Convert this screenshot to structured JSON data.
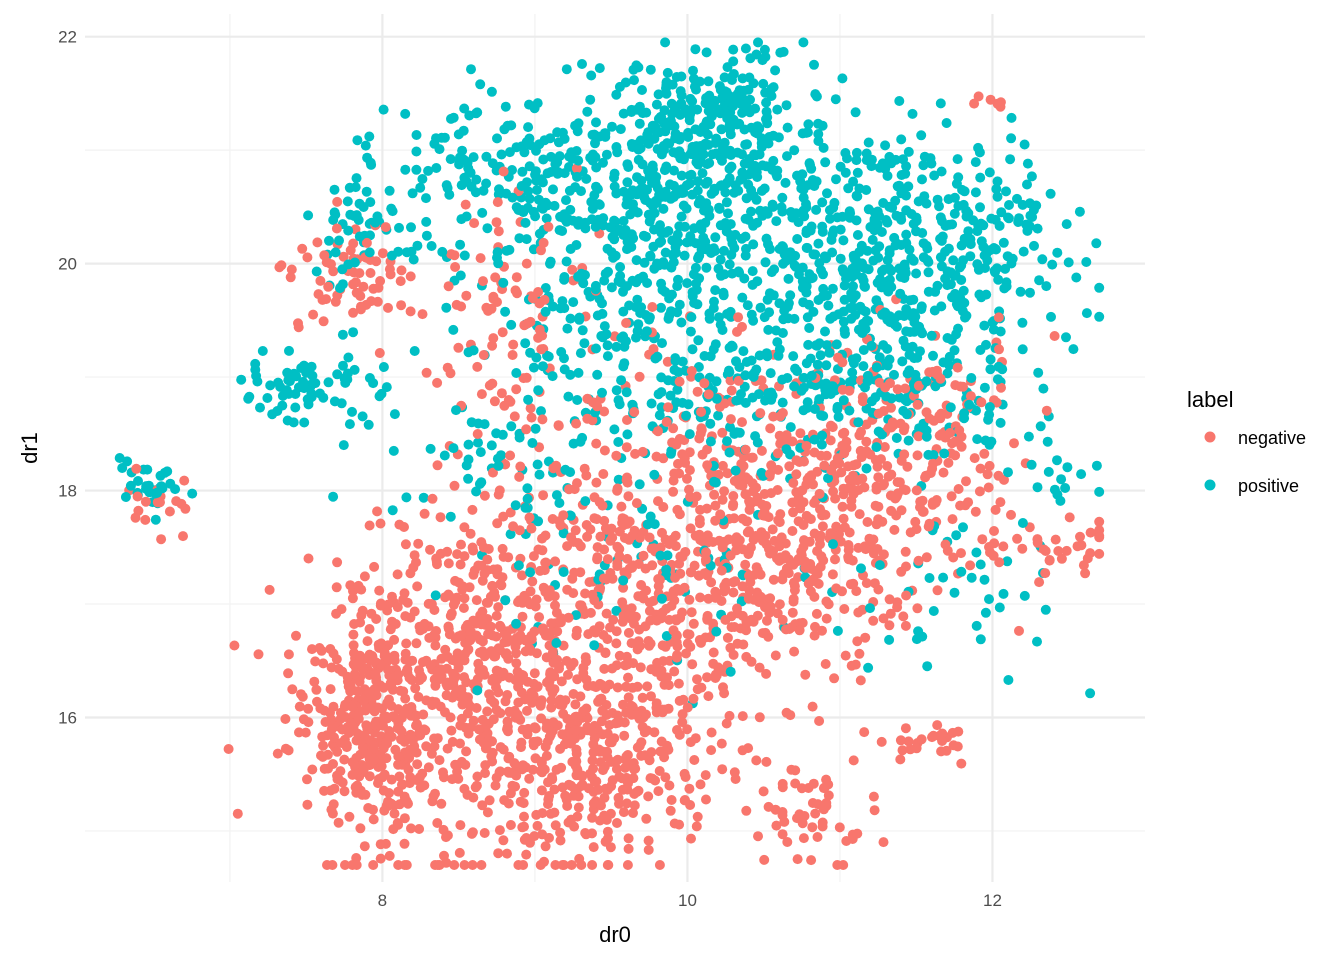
{
  "chart_data": {
    "type": "scatter",
    "title": "",
    "xlabel": "dr0",
    "ylabel": "dr1",
    "xlim": [
      6.05,
      13.0
    ],
    "ylim": [
      14.55,
      22.2
    ],
    "x_ticks": [
      8,
      10,
      12
    ],
    "y_ticks": [
      16,
      18,
      20,
      22
    ],
    "x_minor_ticks": [
      7,
      9,
      11
    ],
    "y_minor_ticks": [
      15,
      17,
      19,
      21
    ],
    "grid": true,
    "legend": {
      "title": "label",
      "position": "right"
    },
    "series": [
      {
        "name": "negative",
        "color": "#F8766D",
        "clusters": [
          {
            "cx": 7.9,
            "cy": 16.0,
            "sx": 0.25,
            "sy": 0.55,
            "n": 380
          },
          {
            "cx": 8.6,
            "cy": 16.4,
            "sx": 0.4,
            "sy": 0.8,
            "n": 420
          },
          {
            "cx": 9.4,
            "cy": 15.6,
            "sx": 0.4,
            "sy": 0.45,
            "n": 330
          },
          {
            "cx": 9.6,
            "cy": 17.0,
            "sx": 0.55,
            "sy": 0.65,
            "n": 380
          },
          {
            "cx": 10.4,
            "cy": 17.3,
            "sx": 0.45,
            "sy": 0.6,
            "n": 280
          },
          {
            "cx": 11.1,
            "cy": 17.8,
            "sx": 0.45,
            "sy": 0.5,
            "n": 200
          },
          {
            "cx": 10.8,
            "cy": 15.2,
            "sx": 0.2,
            "sy": 0.25,
            "n": 55
          },
          {
            "cx": 11.6,
            "cy": 15.8,
            "sx": 0.15,
            "sy": 0.08,
            "n": 25
          },
          {
            "cx": 12.3,
            "cy": 17.5,
            "sx": 0.3,
            "sy": 0.15,
            "n": 40
          },
          {
            "cx": 7.8,
            "cy": 19.9,
            "sx": 0.2,
            "sy": 0.25,
            "n": 70
          },
          {
            "cx": 8.9,
            "cy": 19.5,
            "sx": 0.3,
            "sy": 0.5,
            "n": 90
          },
          {
            "cx": 11.5,
            "cy": 18.6,
            "sx": 0.4,
            "sy": 0.4,
            "n": 110
          },
          {
            "cx": 6.6,
            "cy": 17.9,
            "sx": 0.15,
            "sy": 0.12,
            "n": 18
          },
          {
            "cx": 10.2,
            "cy": 18.5,
            "sx": 0.6,
            "sy": 0.4,
            "n": 140
          },
          {
            "cx": 12.0,
            "cy": 21.4,
            "sx": 0.05,
            "sy": 0.05,
            "n": 6
          }
        ]
      },
      {
        "name": "positive",
        "color": "#00BFC4",
        "clusters": [
          {
            "cx": 10.1,
            "cy": 21.2,
            "sx": 0.35,
            "sy": 0.35,
            "n": 260
          },
          {
            "cx": 10.6,
            "cy": 20.3,
            "sx": 0.6,
            "sy": 0.6,
            "n": 420
          },
          {
            "cx": 9.4,
            "cy": 20.2,
            "sx": 0.5,
            "sy": 0.55,
            "n": 300
          },
          {
            "cx": 11.5,
            "cy": 19.9,
            "sx": 0.45,
            "sy": 0.55,
            "n": 280
          },
          {
            "cx": 8.7,
            "cy": 20.9,
            "sx": 0.4,
            "sy": 0.3,
            "n": 110
          },
          {
            "cx": 7.9,
            "cy": 20.3,
            "sx": 0.2,
            "sy": 0.2,
            "n": 50
          },
          {
            "cx": 7.5,
            "cy": 18.9,
            "sx": 0.22,
            "sy": 0.15,
            "n": 70
          },
          {
            "cx": 6.5,
            "cy": 18.05,
            "sx": 0.15,
            "sy": 0.1,
            "n": 30
          },
          {
            "cx": 12.1,
            "cy": 20.4,
            "sx": 0.15,
            "sy": 0.2,
            "n": 40
          },
          {
            "cx": 11.3,
            "cy": 18.9,
            "sx": 0.5,
            "sy": 0.4,
            "n": 150
          },
          {
            "cx": 10.2,
            "cy": 18.9,
            "sx": 0.55,
            "sy": 0.35,
            "n": 160
          },
          {
            "cx": 9.6,
            "cy": 17.5,
            "sx": 0.6,
            "sy": 0.6,
            "n": 90
          },
          {
            "cx": 8.6,
            "cy": 18.4,
            "sx": 0.4,
            "sy": 0.4,
            "n": 60
          },
          {
            "cx": 12.4,
            "cy": 18.2,
            "sx": 0.15,
            "sy": 0.2,
            "n": 15
          },
          {
            "cx": 11.7,
            "cy": 17.0,
            "sx": 0.4,
            "sy": 0.4,
            "n": 40
          }
        ]
      }
    ]
  }
}
